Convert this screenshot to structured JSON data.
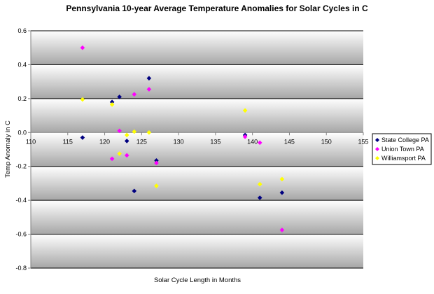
{
  "chart_data": {
    "type": "scatter",
    "title": "Pennsylvania 10-year Average Temperature Anomalies for Solar Cycles in C",
    "xlabel": "Solar Cycle Length in Months",
    "ylabel": "Temp Anomaly in C",
    "xlim": [
      110,
      155
    ],
    "ylim": [
      -0.8,
      0.6
    ],
    "x_ticks": [
      110,
      115,
      120,
      125,
      130,
      135,
      140,
      145,
      150,
      155
    ],
    "y_ticks": [
      -0.8,
      -0.6,
      -0.4,
      -0.2,
      0.0,
      0.2,
      0.4,
      0.6
    ],
    "x_tick_labels": [
      "110",
      "115",
      "120",
      "125",
      "130",
      "135",
      "140",
      "145",
      "150",
      "155"
    ],
    "y_tick_labels": [
      "-0.8",
      "-0.6",
      "-0.4",
      "-0.2",
      "0.0",
      "0.2",
      "0.4",
      "0.6"
    ],
    "grid": "horizontal",
    "legend_position": "right",
    "series": [
      {
        "name": "State College PA",
        "color": "#000080",
        "points": [
          {
            "x": 117,
            "y": -0.03
          },
          {
            "x": 121,
            "y": 0.18
          },
          {
            "x": 122,
            "y": 0.21
          },
          {
            "x": 123,
            "y": -0.05
          },
          {
            "x": 124,
            "y": -0.345
          },
          {
            "x": 126,
            "y": 0.32
          },
          {
            "x": 127,
            "y": -0.165
          },
          {
            "x": 139,
            "y": -0.015
          },
          {
            "x": 141,
            "y": -0.385
          },
          {
            "x": 144,
            "y": -0.355
          }
        ]
      },
      {
        "name": "Union Town PA",
        "color": "#ff00ff",
        "points": [
          {
            "x": 117,
            "y": 0.5
          },
          {
            "x": 121,
            "y": -0.155
          },
          {
            "x": 122,
            "y": 0.01
          },
          {
            "x": 123,
            "y": -0.135
          },
          {
            "x": 124,
            "y": 0.225
          },
          {
            "x": 126,
            "y": 0.255
          },
          {
            "x": 127,
            "y": -0.18
          },
          {
            "x": 139,
            "y": -0.025
          },
          {
            "x": 141,
            "y": -0.06
          },
          {
            "x": 144,
            "y": -0.575
          }
        ]
      },
      {
        "name": "Williamsport PA",
        "color": "#ffff00",
        "points": [
          {
            "x": 117,
            "y": 0.195
          },
          {
            "x": 121,
            "y": 0.165
          },
          {
            "x": 122,
            "y": -0.125
          },
          {
            "x": 123,
            "y": -0.015
          },
          {
            "x": 124,
            "y": 0.005
          },
          {
            "x": 126,
            "y": 0.0
          },
          {
            "x": 127,
            "y": -0.315
          },
          {
            "x": 139,
            "y": 0.13
          },
          {
            "x": 141,
            "y": -0.305
          },
          {
            "x": 144,
            "y": -0.275
          }
        ]
      }
    ]
  }
}
